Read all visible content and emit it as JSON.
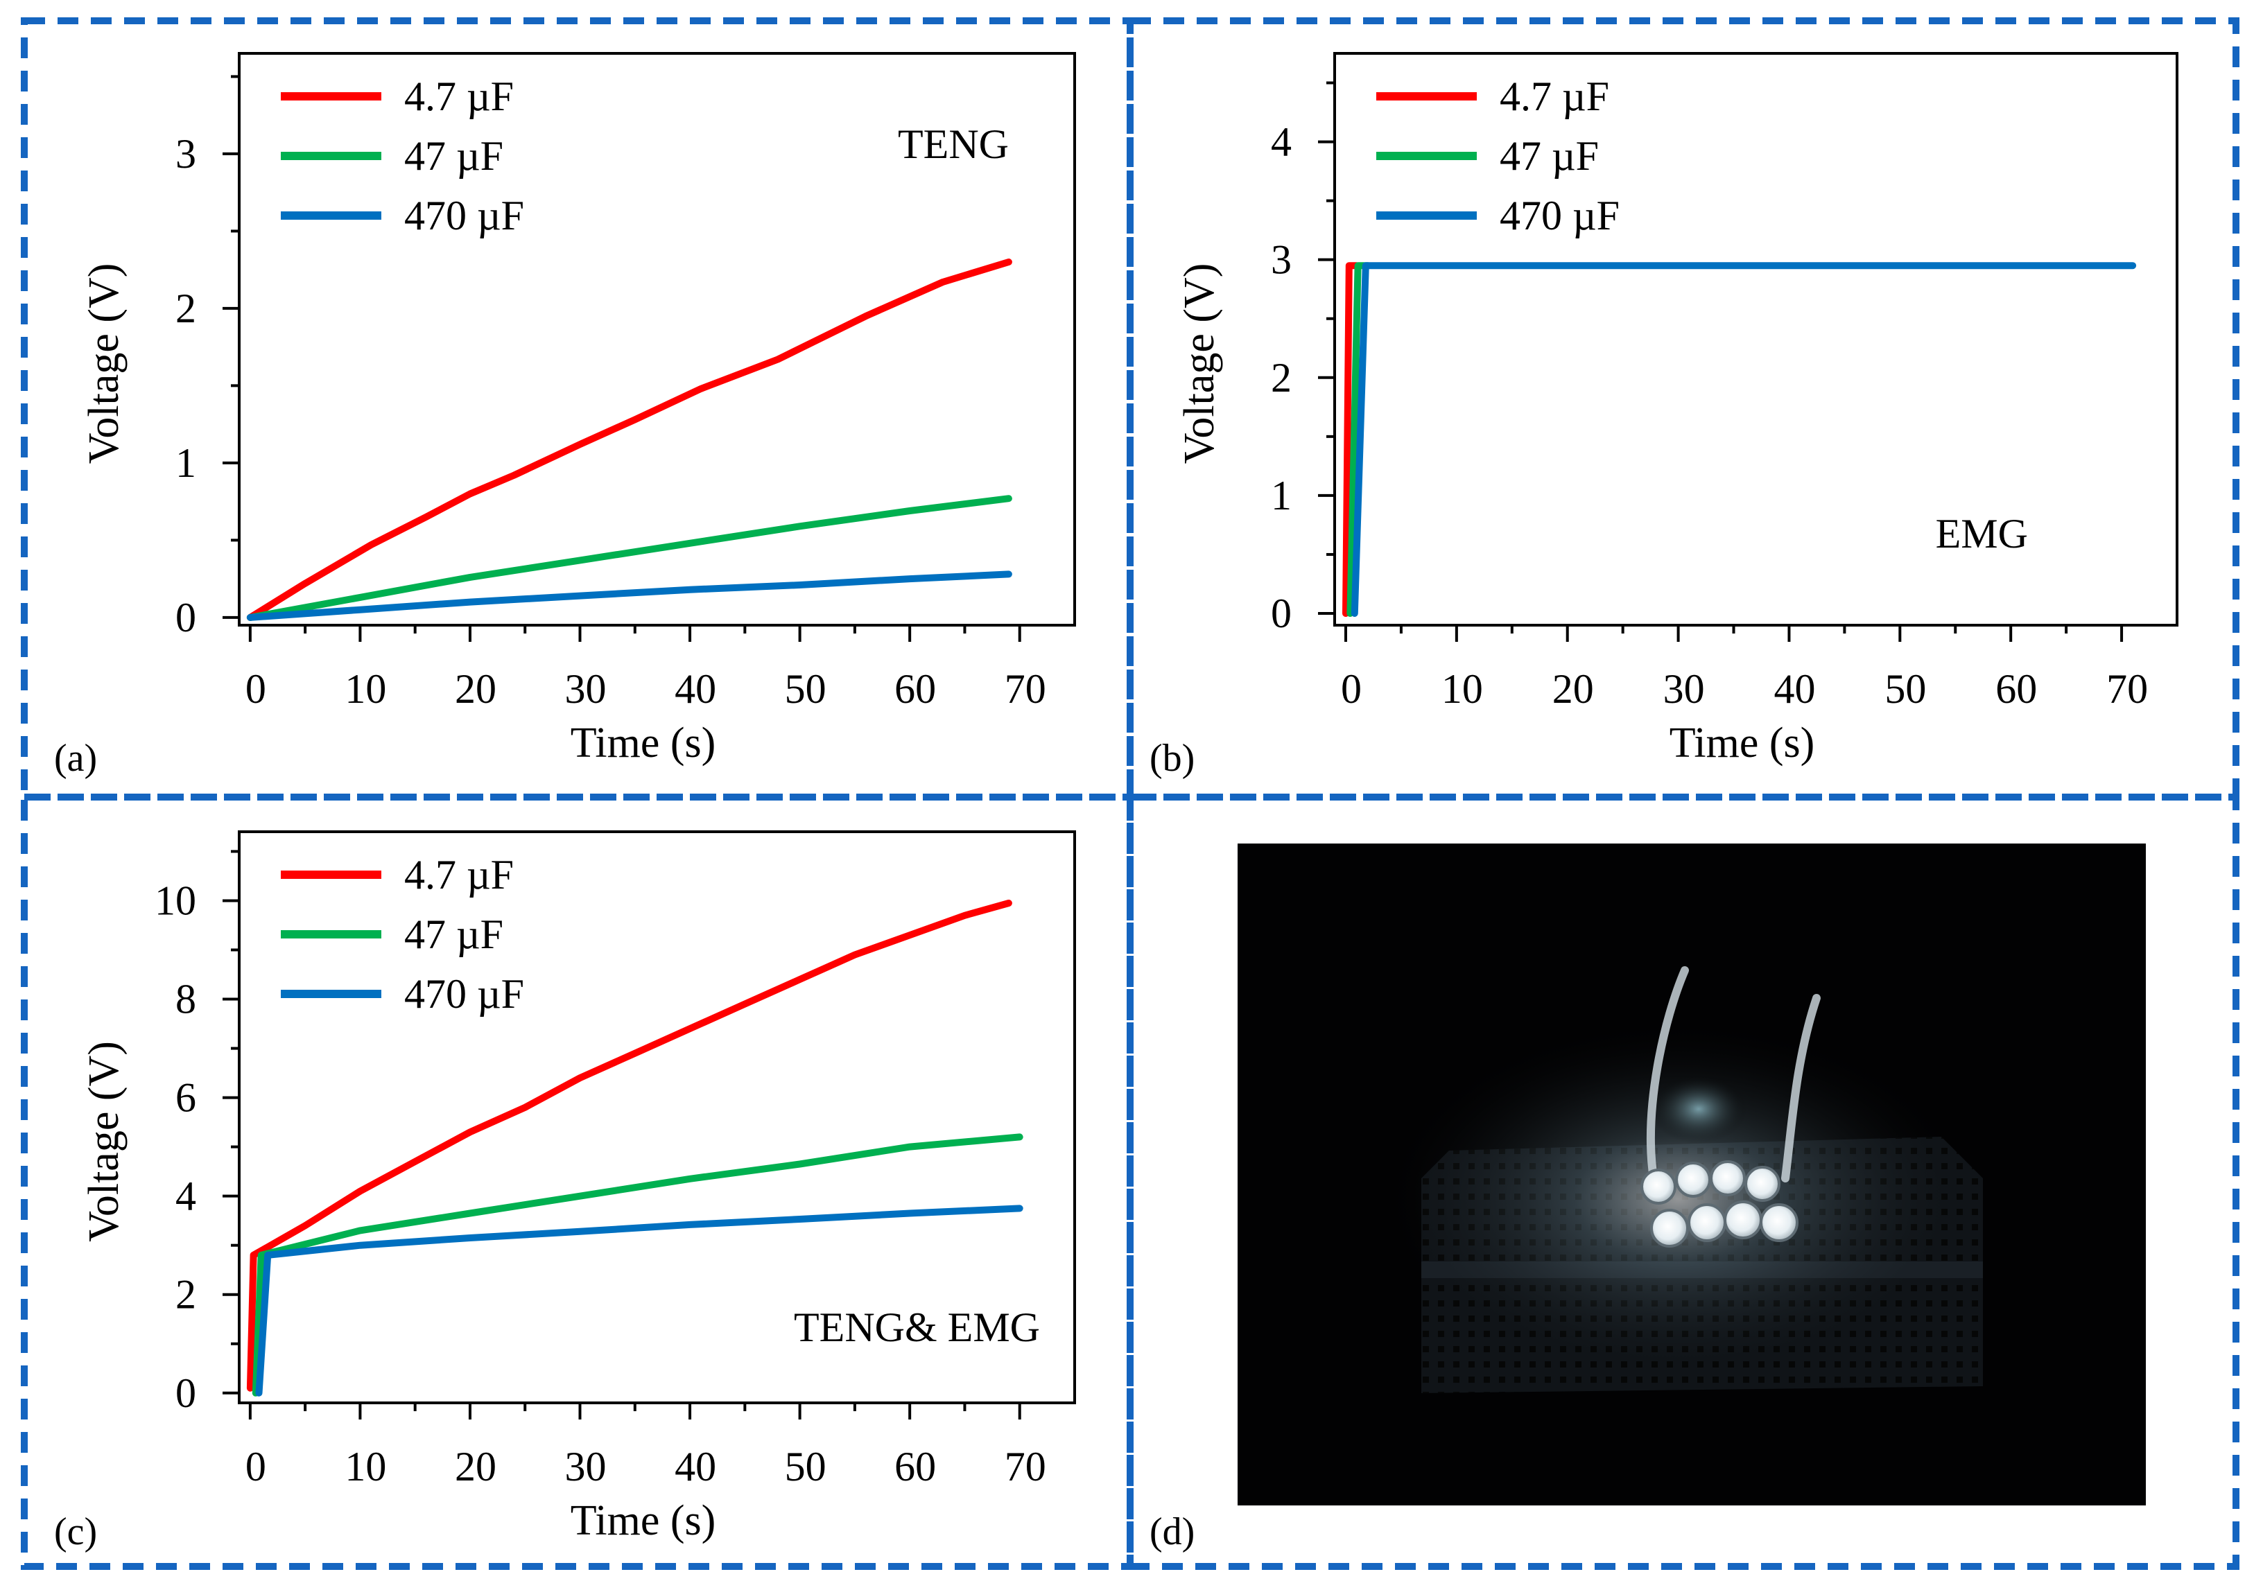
{
  "chart_data": [
    {
      "id": "a",
      "type": "line",
      "panel_label": "(a)",
      "annotation": "TENG",
      "xlabel": "Time (s)",
      "ylabel": "Voltage (V)",
      "xlim": [
        -1,
        75
      ],
      "ylim": [
        -0.05,
        3.65
      ],
      "xticks": [
        0,
        10,
        20,
        30,
        40,
        50,
        60,
        70
      ],
      "yticks": [
        0,
        1,
        2,
        3
      ],
      "series": [
        {
          "name": "4.7 µF",
          "color": "#ff0000",
          "points": [
            [
              0,
              0
            ],
            [
              5,
              0.22
            ],
            [
              11,
              0.47
            ],
            [
              16,
              0.65
            ],
            [
              20,
              0.8
            ],
            [
              24,
              0.92
            ],
            [
              30,
              1.12
            ],
            [
              35,
              1.28
            ],
            [
              41,
              1.48
            ],
            [
              48,
              1.67
            ],
            [
              56,
              1.95
            ],
            [
              63,
              2.17
            ],
            [
              69,
              2.3
            ]
          ]
        },
        {
          "name": "47 µF",
          "color": "#00b050",
          "points": [
            [
              0,
              0
            ],
            [
              10,
              0.13
            ],
            [
              20,
              0.26
            ],
            [
              30,
              0.37
            ],
            [
              40,
              0.48
            ],
            [
              50,
              0.59
            ],
            [
              60,
              0.69
            ],
            [
              69,
              0.77
            ]
          ]
        },
        {
          "name": "470 µF",
          "color": "#0070c0",
          "points": [
            [
              0,
              0
            ],
            [
              10,
              0.05
            ],
            [
              20,
              0.1
            ],
            [
              30,
              0.14
            ],
            [
              40,
              0.18
            ],
            [
              50,
              0.21
            ],
            [
              60,
              0.25
            ],
            [
              69,
              0.28
            ]
          ]
        }
      ]
    },
    {
      "id": "b",
      "type": "line",
      "panel_label": "(b)",
      "annotation": "EMG",
      "xlabel": "Time (s)",
      "ylabel": "Voltage (V)",
      "xlim": [
        -1,
        75
      ],
      "ylim": [
        -0.1,
        4.75
      ],
      "xticks": [
        0,
        10,
        20,
        30,
        40,
        50,
        60,
        70
      ],
      "yticks": [
        0,
        1,
        2,
        3,
        4
      ],
      "series": [
        {
          "name": "4.7 µF",
          "color": "#ff0000",
          "points": [
            [
              0,
              0
            ],
            [
              0.3,
              2.95
            ],
            [
              1,
              2.95
            ]
          ]
        },
        {
          "name": "47 µF",
          "color": "#00b050",
          "points": [
            [
              0.4,
              0
            ],
            [
              1.1,
              2.95
            ],
            [
              2,
              2.95
            ]
          ]
        },
        {
          "name": "470 µF",
          "color": "#0070c0",
          "points": [
            [
              0.8,
              0
            ],
            [
              1.8,
              2.95
            ],
            [
              71,
              2.95
            ]
          ]
        }
      ]
    },
    {
      "id": "c",
      "type": "line",
      "panel_label": "(c)",
      "annotation": "TENG& EMG",
      "xlabel": "Time (s)",
      "ylabel": "Voltage (V)",
      "xlim": [
        -1,
        75
      ],
      "ylim": [
        -0.2,
        11.4
      ],
      "xticks": [
        0,
        10,
        20,
        30,
        40,
        50,
        60,
        70
      ],
      "yticks": [
        0,
        2,
        4,
        6,
        8,
        10
      ],
      "series": [
        {
          "name": "4.7 µF",
          "color": "#ff0000",
          "points": [
            [
              0,
              0.1
            ],
            [
              0.3,
              2.8
            ],
            [
              5,
              3.4
            ],
            [
              10,
              4.1
            ],
            [
              15,
              4.7
            ],
            [
              20,
              5.3
            ],
            [
              25,
              5.8
            ],
            [
              30,
              6.4
            ],
            [
              35,
              6.9
            ],
            [
              40,
              7.4
            ],
            [
              45,
              7.9
            ],
            [
              50,
              8.4
            ],
            [
              55,
              8.9
            ],
            [
              60,
              9.3
            ],
            [
              65,
              9.7
            ],
            [
              69,
              9.95
            ]
          ]
        },
        {
          "name": "47 µF",
          "color": "#00b050",
          "points": [
            [
              0.5,
              0
            ],
            [
              1,
              2.8
            ],
            [
              10,
              3.3
            ],
            [
              20,
              3.65
            ],
            [
              30,
              4.0
            ],
            [
              40,
              4.35
            ],
            [
              50,
              4.65
            ],
            [
              60,
              5.0
            ],
            [
              70,
              5.2
            ]
          ]
        },
        {
          "name": "470 µF",
          "color": "#0070c0",
          "points": [
            [
              0.8,
              0
            ],
            [
              1.6,
              2.8
            ],
            [
              10,
              3.0
            ],
            [
              20,
              3.15
            ],
            [
              30,
              3.28
            ],
            [
              40,
              3.42
            ],
            [
              50,
              3.53
            ],
            [
              60,
              3.65
            ],
            [
              70,
              3.75
            ]
          ]
        }
      ]
    }
  ],
  "photo": {
    "panel_label": "(d)"
  }
}
